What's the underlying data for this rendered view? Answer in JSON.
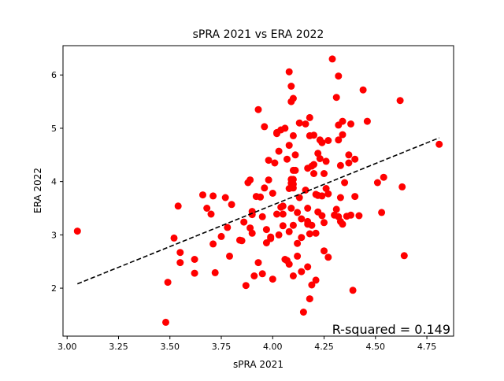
{
  "chart_data": {
    "type": "scatter",
    "title": "sPRA 2021 vs ERA 2022",
    "xlabel": "sPRA 2021",
    "ylabel": "ERA 2022",
    "xlim": [
      2.98,
      4.88
    ],
    "ylim": [
      1.1,
      6.55
    ],
    "x_ticks": [
      "3.00",
      "3.25",
      "3.50",
      "3.75",
      "4.00",
      "4.25",
      "4.50",
      "4.75"
    ],
    "y_ticks": [
      "2",
      "3",
      "4",
      "5",
      "6"
    ],
    "grid": false,
    "point_color": "#ff0000",
    "trend_color": "#000000",
    "annotation": "R-squared = 0.149",
    "trendline": {
      "x": [
        3.05,
        4.81
      ],
      "y": [
        2.08,
        4.82
      ]
    },
    "points": [
      [
        3.05,
        3.07
      ],
      [
        3.48,
        1.36
      ],
      [
        3.49,
        2.11
      ],
      [
        3.52,
        2.94
      ],
      [
        3.54,
        3.54
      ],
      [
        3.55,
        2.67
      ],
      [
        3.55,
        2.48
      ],
      [
        3.62,
        2.28
      ],
      [
        3.62,
        2.54
      ],
      [
        3.66,
        3.75
      ],
      [
        3.68,
        3.5
      ],
      [
        3.7,
        3.39
      ],
      [
        3.71,
        3.73
      ],
      [
        3.71,
        2.83
      ],
      [
        3.72,
        2.29
      ],
      [
        3.75,
        2.97
      ],
      [
        3.77,
        3.7
      ],
      [
        3.78,
        3.14
      ],
      [
        3.79,
        2.6
      ],
      [
        3.8,
        3.57
      ],
      [
        3.84,
        2.9
      ],
      [
        3.85,
        2.89
      ],
      [
        3.86,
        3.24
      ],
      [
        3.87,
        2.05
      ],
      [
        3.88,
        3.98
      ],
      [
        3.89,
        4.03
      ],
      [
        3.89,
        3.13
      ],
      [
        3.9,
        3.44
      ],
      [
        3.9,
        3.38
      ],
      [
        3.9,
        3.03
      ],
      [
        3.91,
        2.23
      ],
      [
        3.92,
        3.72
      ],
      [
        3.93,
        5.35
      ],
      [
        3.93,
        2.48
      ],
      [
        3.94,
        3.71
      ],
      [
        3.95,
        3.34
      ],
      [
        3.95,
        2.27
      ],
      [
        3.96,
        5.03
      ],
      [
        3.96,
        3.88
      ],
      [
        3.97,
        3.1
      ],
      [
        3.97,
        2.85
      ],
      [
        3.98,
        4.4
      ],
      [
        3.98,
        4.03
      ],
      [
        3.99,
        2.96
      ],
      [
        3.99,
        2.93
      ],
      [
        4.0,
        3.78
      ],
      [
        4.0,
        2.17
      ],
      [
        4.01,
        4.35
      ],
      [
        4.02,
        4.92
      ],
      [
        4.02,
        4.9
      ],
      [
        4.02,
        3.39
      ],
      [
        4.03,
        4.57
      ],
      [
        4.03,
        3.0
      ],
      [
        4.04,
        4.97
      ],
      [
        4.04,
        3.52
      ],
      [
        4.05,
        3.54
      ],
      [
        4.05,
        3.39
      ],
      [
        4.05,
        3.17
      ],
      [
        4.06,
        5.0
      ],
      [
        4.06,
        2.54
      ],
      [
        4.07,
        4.42
      ],
      [
        4.07,
        2.52
      ],
      [
        4.08,
        6.06
      ],
      [
        4.08,
        4.68
      ],
      [
        4.08,
        3.87
      ],
      [
        4.08,
        3.06
      ],
      [
        4.08,
        2.45
      ],
      [
        4.09,
        5.79
      ],
      [
        4.09,
        5.5
      ],
      [
        4.09,
        4.04
      ],
      [
        4.09,
        3.97
      ],
      [
        4.09,
        3.5
      ],
      [
        4.1,
        5.56
      ],
      [
        4.1,
        4.86
      ],
      [
        4.1,
        4.21
      ],
      [
        4.1,
        4.04
      ],
      [
        4.1,
        3.95
      ],
      [
        4.1,
        3.88
      ],
      [
        4.1,
        3.18
      ],
      [
        4.1,
        2.23
      ],
      [
        4.11,
        4.5
      ],
      [
        4.11,
        4.21
      ],
      [
        4.12,
        3.42
      ],
      [
        4.12,
        2.84
      ],
      [
        4.12,
        2.6
      ],
      [
        4.13,
        5.1
      ],
      [
        4.13,
        3.7
      ],
      [
        4.14,
        3.3
      ],
      [
        4.14,
        2.95
      ],
      [
        4.14,
        2.31
      ],
      [
        4.15,
        1.55
      ],
      [
        4.16,
        5.08
      ],
      [
        4.16,
        3.84
      ],
      [
        4.17,
        4.25
      ],
      [
        4.17,
        3.5
      ],
      [
        4.17,
        3.25
      ],
      [
        4.17,
        3.2
      ],
      [
        4.17,
        2.4
      ],
      [
        4.18,
        5.2
      ],
      [
        4.18,
        4.86
      ],
      [
        4.18,
        3.02
      ],
      [
        4.18,
        1.8
      ],
      [
        4.19,
        4.29
      ],
      [
        4.19,
        3.18
      ],
      [
        4.19,
        2.06
      ],
      [
        4.2,
        4.87
      ],
      [
        4.2,
        4.32
      ],
      [
        4.2,
        4.15
      ],
      [
        4.21,
        3.76
      ],
      [
        4.21,
        3.03
      ],
      [
        4.21,
        2.15
      ],
      [
        4.22,
        4.53
      ],
      [
        4.22,
        3.74
      ],
      [
        4.22,
        3.43
      ],
      [
        4.23,
        4.78
      ],
      [
        4.23,
        4.43
      ],
      [
        4.24,
        4.73
      ],
      [
        4.24,
        3.73
      ],
      [
        4.24,
        3.36
      ],
      [
        4.25,
        4.15
      ],
      [
        4.25,
        3.23
      ],
      [
        4.25,
        2.7
      ],
      [
        4.26,
        4.38
      ],
      [
        4.26,
        3.87
      ],
      [
        4.27,
        4.77
      ],
      [
        4.27,
        3.77
      ],
      [
        4.27,
        2.58
      ],
      [
        4.29,
        6.3
      ],
      [
        4.3,
        3.37
      ],
      [
        4.31,
        5.58
      ],
      [
        4.31,
        3.48
      ],
      [
        4.32,
        5.98
      ],
      [
        4.32,
        5.06
      ],
      [
        4.32,
        4.78
      ],
      [
        4.32,
        3.34
      ],
      [
        4.33,
        4.3
      ],
      [
        4.33,
        3.7
      ],
      [
        4.33,
        3.25
      ],
      [
        4.34,
        5.13
      ],
      [
        4.34,
        4.88
      ],
      [
        4.34,
        3.2
      ],
      [
        4.35,
        3.98
      ],
      [
        4.36,
        3.35
      ],
      [
        4.37,
        4.5
      ],
      [
        4.37,
        4.35
      ],
      [
        4.38,
        5.08
      ],
      [
        4.38,
        3.37
      ],
      [
        4.39,
        1.96
      ],
      [
        4.4,
        4.42
      ],
      [
        4.4,
        3.72
      ],
      [
        4.42,
        3.36
      ],
      [
        4.44,
        5.72
      ],
      [
        4.46,
        5.13
      ],
      [
        4.51,
        3.98
      ],
      [
        4.53,
        3.42
      ],
      [
        4.54,
        4.08
      ],
      [
        4.62,
        5.52
      ],
      [
        4.63,
        3.9
      ],
      [
        4.64,
        2.61
      ],
      [
        4.81,
        4.7
      ]
    ]
  }
}
